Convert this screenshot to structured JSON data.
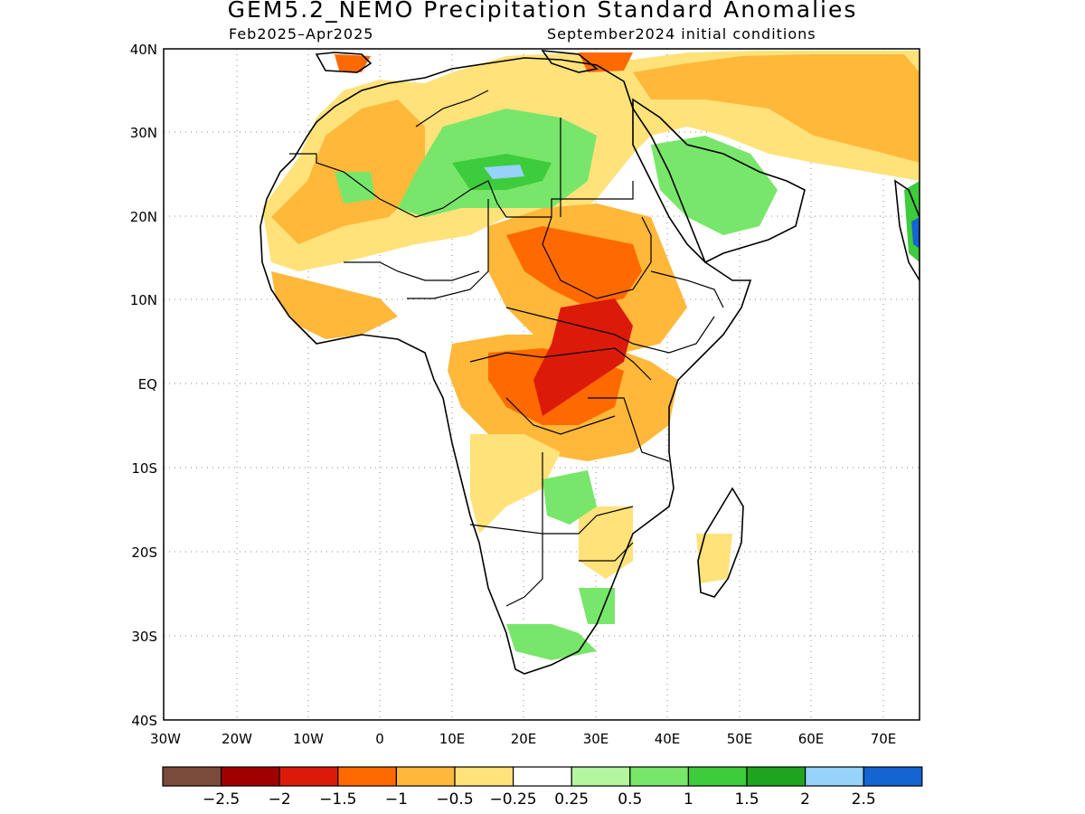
{
  "title": "GEM5.2_NEMO Precipitation Standard Anomalies",
  "subtitle_left": "Feb2025–Apr2025",
  "subtitle_right": "September2024 initial conditions",
  "lat_labels": [
    "40N",
    "30N",
    "20N",
    "10N",
    "EQ",
    "10S",
    "20S",
    "30S",
    "40S"
  ],
  "lon_labels": [
    "30W",
    "20W",
    "10W",
    "0",
    "10E",
    "20E",
    "30E",
    "40E",
    "50E",
    "60E",
    "70E"
  ],
  "colorbar": {
    "colors": [
      "#7a4a3a",
      "#a00000",
      "#dc1a0a",
      "#ff6a00",
      "#ffb83a",
      "#ffe27a",
      "#ffffff",
      "#b4f5a0",
      "#78e66a",
      "#3ccc3c",
      "#1ea41e",
      "#96d2fa",
      "#1464d2"
    ],
    "labels": [
      "−2.5",
      "−2",
      "−1.5",
      "−1",
      "−0.5",
      "−0.25",
      "0.25",
      "0.5",
      "1",
      "1.5",
      "2",
      "2.5"
    ]
  }
}
